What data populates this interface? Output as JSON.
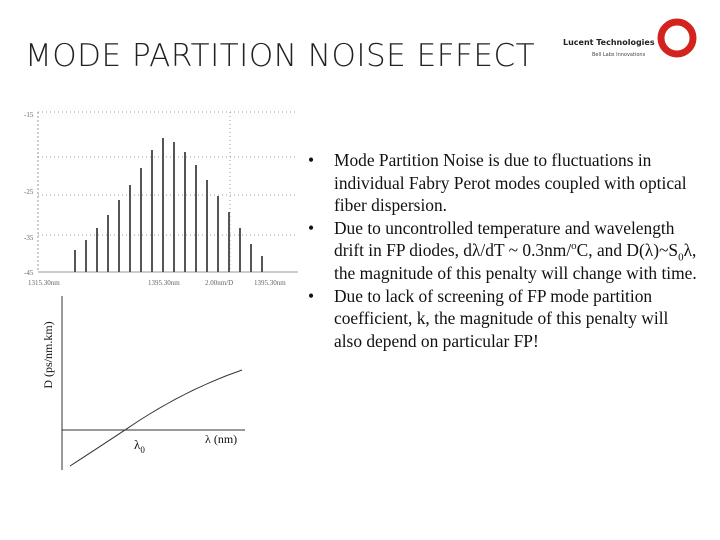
{
  "header": {
    "title": "MODE PARTITION NOISE EFFECT",
    "logo": {
      "company": "Lucent Technologies",
      "tagline": "Bell Labs Innovations"
    }
  },
  "spectrum": {
    "y_labels": [
      "-15",
      "-25",
      "-35",
      "-45"
    ],
    "x_labels": [
      "1315.30nm",
      "1395.30nm",
      "2.00nm/D",
      "1395.30nm"
    ]
  },
  "dispersion_diagram": {
    "y_axis_label": "D (ps/nm.km)",
    "zero_label": [
      "λ",
      "0"
    ],
    "x_axis_label": "λ (nm)"
  },
  "bullets": [
    [
      "Mode Partition Noise is due to fluctuations in individual Fabry Perot modes coupled with optical fiber dispersion."
    ],
    [
      "Due to uncontrolled temperature and wavelength drift in FP diodes, dλ/dT ~ 0.3nm/",
      "o",
      "C, and D(λ)~S",
      "0",
      "λ, the magnitude of this penalty will change with time."
    ],
    [
      "Due to lack of screening of FP mode partition coefficient, k, the magnitude of this penalty will also depend on particular FP!"
    ]
  ]
}
